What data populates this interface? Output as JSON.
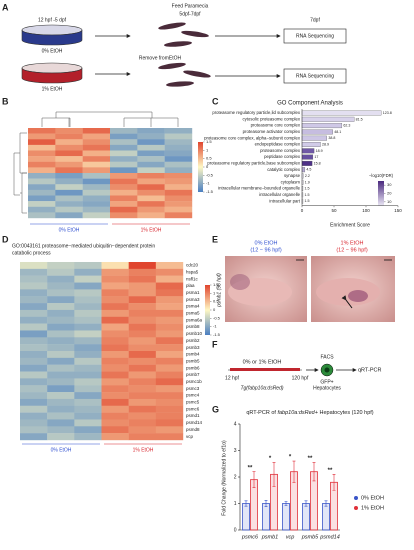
{
  "panel_a": {
    "label": "A",
    "dose_time": "12 hpf -5 dpf",
    "control": "0% EtOH",
    "feed": "Feed Paramecia",
    "feed_time": "5dpf-7dpf",
    "end_time": "7dpf",
    "assay_1": "RNA Sequencing",
    "remove": "Remove fromEtOH",
    "treated": "1% EtOH",
    "assay_2": "RNA Sequencing"
  },
  "panel_b": {
    "label": "B",
    "groups": [
      "0% EtOH",
      "1% EtOH"
    ],
    "colorbar_lim": [
      -1.5,
      1.5
    ],
    "colorbar_ticks": [
      1.5,
      1,
      0.5,
      0,
      -0.5,
      -1,
      -1.5
    ],
    "colors": [
      "#4a7fc1",
      "#fff8c4",
      "#e0452e"
    ],
    "values": [
      [
        1.1,
        0.9,
        1.2,
        -0.8,
        -1.0,
        -0.9
      ],
      [
        0.8,
        1.0,
        0.7,
        -1.1,
        -0.9,
        -0.6
      ],
      [
        1.3,
        0.6,
        0.9,
        -0.7,
        -1.2,
        -0.8
      ],
      [
        0.5,
        0.9,
        1.1,
        -1.0,
        -0.6,
        -0.9
      ],
      [
        0.9,
        1.2,
        0.6,
        -0.5,
        -1.1,
        -1.0
      ],
      [
        0.7,
        0.5,
        1.0,
        -0.9,
        -0.7,
        -1.2
      ],
      [
        1.0,
        0.8,
        0.4,
        -0.6,
        -1.0,
        -0.7
      ],
      [
        0.6,
        1.1,
        0.8,
        -1.2,
        -0.5,
        -0.9
      ],
      [
        -0.9,
        -1.1,
        -0.7,
        0.8,
        1.0,
        0.9
      ],
      [
        -0.6,
        -0.9,
        -1.2,
        1.1,
        0.7,
        0.8
      ],
      [
        -1.0,
        -0.5,
        -0.8,
        0.9,
        1.2,
        0.6
      ],
      [
        -0.8,
        -1.2,
        -0.6,
        0.6,
        0.9,
        1.1
      ],
      [
        -1.1,
        -0.7,
        -0.9,
        1.0,
        0.5,
        0.9
      ],
      [
        -0.5,
        -0.9,
        -1.0,
        0.7,
        1.1,
        0.8
      ],
      [
        -0.9,
        -0.6,
        -0.8,
        1.2,
        0.8,
        0.6
      ],
      [
        -0.7,
        -1.0,
        -0.5,
        0.9,
        0.6,
        1.0
      ]
    ]
  },
  "chart_data": [
    {
      "type": "hbar",
      "panel_label": "C",
      "title": "GO Component Analysis",
      "categories": [
        "proteasome regulatory particle,lid subcomplex",
        "cytosolic proteasome complex",
        "proteasome core complex",
        "proteasome activator complex",
        "proteasome core complex, alpha−subunit complex",
        "endopeptidase complex",
        "proteasome complex",
        "peptidase complex",
        "proteasome regulatory particle,base subcomplex",
        "catalytic complex",
        "synapse",
        "cytoplasm",
        "intracellular membrane−bounded organelle",
        "intracellular organelle",
        "intracellular part"
      ],
      "values": [
        123.8,
        81.5,
        62.3,
        48.1,
        38.8,
        28.9,
        18.9,
        17,
        15.8,
        4.5,
        2.2,
        1.9,
        1.5,
        1.5,
        1.5
      ],
      "colors": [
        "#e3dff0",
        "#d8d2eb",
        "#cfc8e6",
        "#c6bde0",
        "#cdc6e5",
        "#d1cbe8",
        "#7059a6",
        "#6650a0",
        "#4e3187",
        "#b5aad4",
        "#ece9f5",
        "#eeeaf6",
        "#f0edf7",
        "#f0edf7",
        "#f0edf7"
      ],
      "xlim": [
        0,
        150
      ],
      "xticks": [
        0,
        50,
        100,
        150
      ],
      "xlabel": "Enrichment Score",
      "legend_title": "−log10(FDR)",
      "legend_lim": [
        5,
        35
      ],
      "legend_ticks": [
        30,
        20,
        10
      ],
      "legend_colors": [
        "#4b2a7f",
        "#ece9f5"
      ]
    },
    {
      "type": "groupbar",
      "panel_label": "G",
      "title_parts": [
        "qRT-PCR of ",
        "fabp10a:dsRed+",
        " Hepatocytes (120 hpf)"
      ],
      "categories": [
        "psmc6",
        "psmb1",
        "vcp",
        "psmb5",
        "psmd14"
      ],
      "series": [
        {
          "name": "0% EtOH",
          "color": "#3a55c8",
          "values": [
            1,
            1,
            1,
            1,
            1
          ],
          "errors": [
            0.1,
            0.12,
            0.08,
            0.1,
            0.1
          ]
        },
        {
          "name": "1% EtOH",
          "color": "#e0303a",
          "values": [
            1.9,
            2.1,
            2.2,
            2.2,
            1.8
          ],
          "errors": [
            0.3,
            0.45,
            0.4,
            0.35,
            0.3
          ]
        }
      ],
      "annotations": [
        "**",
        "*",
        "*",
        "**",
        "**"
      ],
      "ylabel": "Fold Change (Normalized to ef1α)",
      "ylim": [
        0,
        4
      ],
      "yticks": [
        0,
        1,
        2,
        3,
        4
      ]
    }
  ],
  "panel_d": {
    "label": "D",
    "title_lines": [
      "GO:0043161 proteasome−mediated ubiquitin−dependent protein",
      "catabolic process"
    ],
    "groups": [
      "0% EtOH",
      "1% EtOH"
    ],
    "rows": [
      "cdc20",
      "hspa5",
      "nsfl1c",
      "plaa",
      "psma1",
      "psma3",
      "psma4",
      "psma5",
      "psma6a",
      "psmb8",
      "psmb10",
      "psmb2",
      "psmb3",
      "psmb4",
      "psmb5",
      "psmb6",
      "psmb7",
      "psmc1b",
      "psmc3",
      "psmc4",
      "psmc5",
      "psmc6",
      "psmd1",
      "psmd14",
      "psmd8",
      "vcp"
    ],
    "colorbar_lim": [
      -1.5,
      1.5
    ],
    "colorbar_ticks": [
      1.5,
      1,
      0.5,
      0,
      -0.5,
      -1,
      -1.5
    ],
    "colors": [
      "#4a7fc1",
      "#fff8c4",
      "#e0452e"
    ],
    "values": [
      [
        -0.3,
        -0.5,
        -0.6,
        0.2,
        1.6,
        0.5
      ],
      [
        -0.8,
        -0.6,
        -0.9,
        0.8,
        1.0,
        0.9
      ],
      [
        -0.7,
        -0.9,
        -0.5,
        0.9,
        1.1,
        0.6
      ],
      [
        -0.6,
        -0.8,
        -1.0,
        0.7,
        0.8,
        1.2
      ],
      [
        -0.9,
        -0.7,
        -0.6,
        1.0,
        0.8,
        1.1
      ],
      [
        -0.8,
        -1.0,
        -0.7,
        0.9,
        1.2,
        0.8
      ],
      [
        -1.0,
        -0.6,
        -0.8,
        1.1,
        0.9,
        0.7
      ],
      [
        -0.7,
        -0.9,
        -0.6,
        0.8,
        1.0,
        1.0
      ],
      [
        -0.9,
        -0.8,
        -0.7,
        1.2,
        0.9,
        0.8
      ],
      [
        -0.6,
        -1.0,
        -0.9,
        0.7,
        1.1,
        0.9
      ],
      [
        -1.1,
        -0.7,
        -0.5,
        0.9,
        1.0,
        0.8
      ],
      [
        -0.8,
        -0.9,
        -0.8,
        1.0,
        0.8,
        1.1
      ],
      [
        -0.7,
        -0.8,
        -1.0,
        1.1,
        0.9,
        0.9
      ],
      [
        -0.9,
        -0.6,
        -0.9,
        0.8,
        1.2,
        0.7
      ],
      [
        -0.8,
        -1.0,
        -0.6,
        1.0,
        0.9,
        1.0
      ],
      [
        -1.0,
        -0.7,
        -0.8,
        0.9,
        1.1,
        0.8
      ],
      [
        -0.6,
        -0.9,
        -0.9,
        1.1,
        0.8,
        1.0
      ],
      [
        -0.9,
        -0.8,
        -0.6,
        0.8,
        1.0,
        1.2
      ],
      [
        -0.7,
        -1.1,
        -0.7,
        1.0,
        0.9,
        0.8
      ],
      [
        -0.8,
        -0.6,
        -1.0,
        0.9,
        1.0,
        1.0
      ],
      [
        -1.0,
        -0.8,
        -0.7,
        1.2,
        0.8,
        0.9
      ],
      [
        -0.6,
        -0.9,
        -0.8,
        0.8,
        1.1,
        1.0
      ],
      [
        -0.9,
        -0.7,
        -0.9,
        1.0,
        0.9,
        1.0
      ],
      [
        -0.8,
        -1.0,
        -0.6,
        0.9,
        1.0,
        1.1
      ],
      [
        -0.7,
        -0.8,
        -1.0,
        1.1,
        0.9,
        0.8
      ],
      [
        -1.0,
        -0.6,
        -0.8,
        0.8,
        1.0,
        1.0
      ]
    ]
  },
  "panel_e": {
    "label": "E",
    "control": "0% EtOH",
    "control_time": "(12 − 96 hpf)",
    "treated": "1% EtOH",
    "treated_time": "(12 − 96 hpf)",
    "row_label": "psmb1 (96 hpf)"
  },
  "panel_f": {
    "label": "F",
    "exposure": "0% or 1% EtOH",
    "start": "12 hpf",
    "end": "120 hpf",
    "line": "Tg(fabp10a:dsRed)",
    "sort": "FACS",
    "cells_1": "GFP+",
    "cells_2": "Hepatocytes",
    "assay": "qRT-PCR"
  }
}
